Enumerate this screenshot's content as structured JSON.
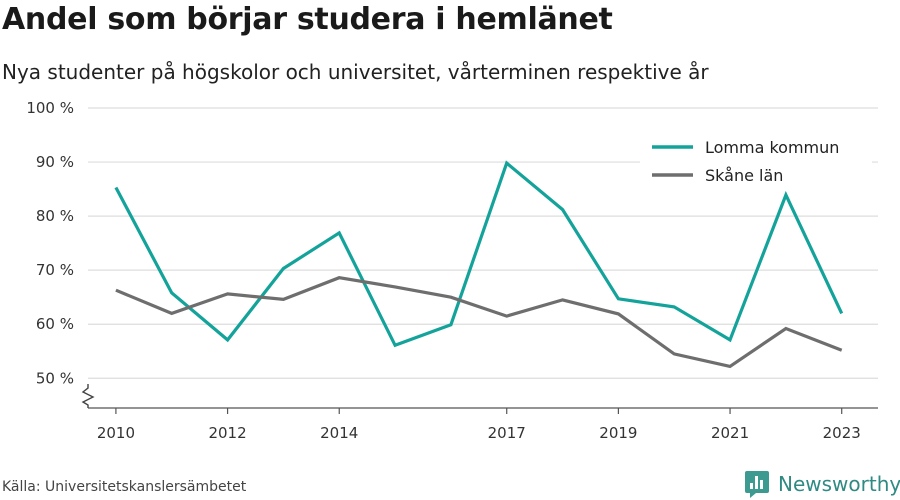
{
  "header": {
    "title": "Andel som börjar studera i hemlänet",
    "subtitle": "Nya studenter på högskolor och universitet, vårterminen respektive år"
  },
  "footer": {
    "source": "Källa: Universitetskanslersämbetet",
    "brand": "Newsworthy"
  },
  "icons": {
    "brand": "newsworthy-logo-icon",
    "axis_break": "axis-break-icon"
  },
  "chart_data": {
    "type": "line",
    "title": "Andel som börjar studera i hemlänet",
    "subtitle": "Nya studenter på högskolor och universitet, vårterminen respektive år",
    "x": [
      2010,
      2011,
      2012,
      2013,
      2014,
      2015,
      2016,
      2017,
      2018,
      2019,
      2020,
      2021,
      2022,
      2023
    ],
    "x_ticks": [
      2010,
      2012,
      2014,
      2017,
      2019,
      2021,
      2023
    ],
    "y_ticks": [
      50,
      60,
      70,
      80,
      90,
      100
    ],
    "y_tick_labels": [
      "50 %",
      "60 %",
      "70 %",
      "80 %",
      "90 %",
      "100 %"
    ],
    "xlim": [
      2009.5,
      2023.65
    ],
    "ylim": [
      44.5,
      100
    ],
    "y_axis_break": true,
    "grid": "horizontal",
    "legend_position": "top-right",
    "series": [
      {
        "name": "Lomma kommun",
        "color": "#14a39a",
        "values": [
          85.3,
          65.8,
          57.1,
          70.3,
          76.9,
          56.1,
          59.9,
          89.8,
          81.2,
          64.7,
          63.2,
          57.1,
          83.9,
          62.0
        ]
      },
      {
        "name": "Skåne län",
        "color": "#6e6e6e",
        "values": [
          66.3,
          62.0,
          65.6,
          64.6,
          68.6,
          66.9,
          65.0,
          61.5,
          64.5,
          61.9,
          54.5,
          52.2,
          59.2,
          55.2
        ]
      }
    ]
  }
}
